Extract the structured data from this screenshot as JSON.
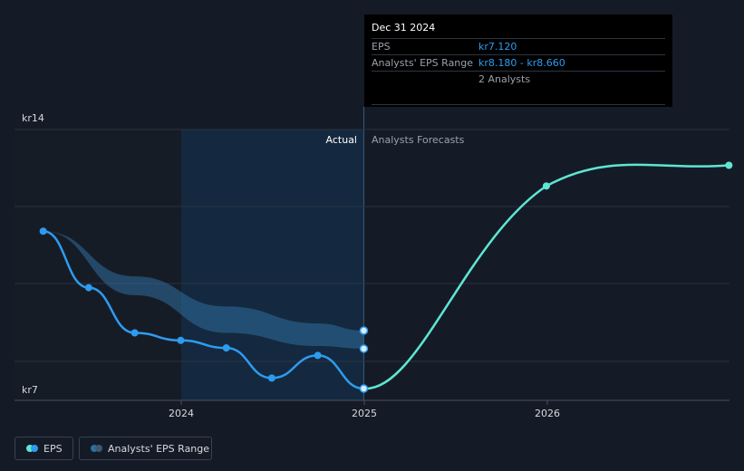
{
  "chart_data": {
    "type": "line",
    "y_tick_labels": [
      "kr14",
      "kr7"
    ],
    "ylim": [
      7,
      14
    ],
    "x_tick_labels": [
      "2024",
      "2025",
      "2026"
    ],
    "regions": {
      "actual_label": "Actual",
      "forecast_label": "Analysts Forecasts"
    },
    "series": [
      {
        "name": "EPS",
        "color": "#2d9cf0",
        "points": [
          {
            "x": "2023-03-31",
            "y": 11.3
          },
          {
            "x": "2023-06-30",
            "y": 9.8
          },
          {
            "x": "2023-09-30",
            "y": 8.6
          },
          {
            "x": "2023-12-31",
            "y": 8.4
          },
          {
            "x": "2024-03-31",
            "y": 8.2
          },
          {
            "x": "2024-06-30",
            "y": 7.4
          },
          {
            "x": "2024-09-30",
            "y": 8.0
          },
          {
            "x": "2024-12-31",
            "y": 7.12
          }
        ]
      },
      {
        "name": "EPS forecast",
        "color": "#5ee6d3",
        "points": [
          {
            "x": "2024-12-31",
            "y": 7.12
          },
          {
            "x": "2025-12-31",
            "y": 12.5
          },
          {
            "x": "2026-12-31",
            "y": 13.05
          }
        ]
      }
    ],
    "range": {
      "name": "Analysts' EPS Range",
      "color": "#2f6e9f",
      "points": [
        {
          "x": "2023-03-31",
          "low": 11.3,
          "high": 11.3
        },
        {
          "x": "2023-09-30",
          "low": 9.6,
          "high": 10.1
        },
        {
          "x": "2024-03-31",
          "low": 8.6,
          "high": 9.3
        },
        {
          "x": "2024-09-30",
          "low": 8.25,
          "high": 8.85
        },
        {
          "x": "2024-12-31",
          "low": 8.18,
          "high": 8.66
        }
      ]
    }
  },
  "tooltip": {
    "title": "Dec 31 2024",
    "rows": [
      {
        "key": "EPS",
        "value": "kr7.120"
      },
      {
        "key": "Analysts' EPS Range",
        "value": "kr8.180 - kr8.660"
      },
      {
        "key": "",
        "value": "2 Analysts"
      }
    ]
  },
  "legend": {
    "eps_label": "EPS",
    "range_label": "Analysts' EPS Range"
  }
}
